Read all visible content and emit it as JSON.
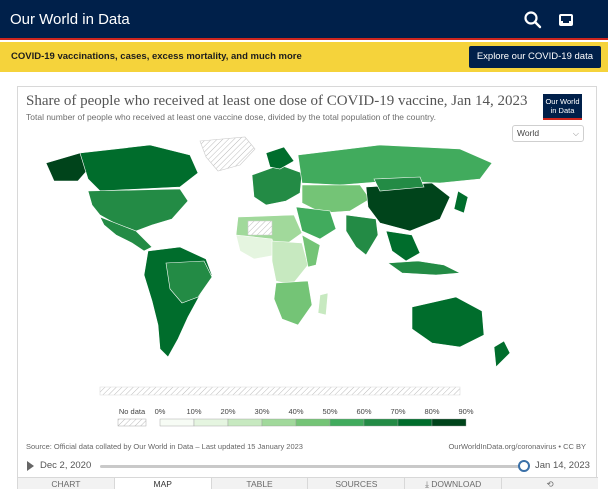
{
  "nav": {
    "brand": "Our World in Data",
    "icons": [
      "search-icon",
      "inbox-icon"
    ]
  },
  "banner": {
    "text": "COVID-19 vaccinations, cases, excess mortality, and much more",
    "button": "Explore our COVID-19 data"
  },
  "chart": {
    "title": "Share of people who received at least one dose of COVID-19 vaccine, Jan 14, 2023",
    "subtitle": "Total number of people who received at least one vaccine dose, divided by the total population of the country.",
    "logo": [
      "Our World",
      "in Data"
    ],
    "region": "World",
    "source": "Source: Official data collated by Our World in Data – Last updated 15 January 2023",
    "license": "OurWorldInData.org/coronavirus • CC BY"
  },
  "legend": {
    "no_data_label": "No data",
    "labels": [
      "0%",
      "10%",
      "20%",
      "30%",
      "40%",
      "50%",
      "60%",
      "70%",
      "80%",
      "90%"
    ],
    "colors": [
      "#f7fcf5",
      "#e5f5e0",
      "#c7e9c0",
      "#a1d99b",
      "#74c476",
      "#41ab5d",
      "#238b45",
      "#006d2c",
      "#00441b"
    ]
  },
  "timeline": {
    "start": "Dec 2, 2020",
    "end": "Jan 14, 2023",
    "position": 1.0
  },
  "tabs": [
    "CHART",
    "MAP",
    "TABLE",
    "SOURCES",
    "DOWNLOAD",
    "share"
  ],
  "active_tab": "MAP"
}
